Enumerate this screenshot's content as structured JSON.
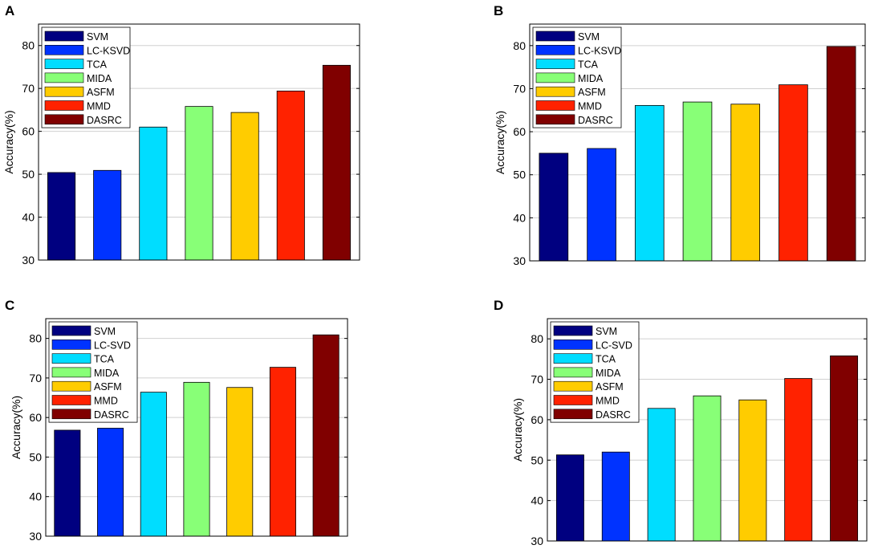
{
  "chart_data": [
    {
      "panel": "A",
      "type": "bar",
      "ylabel": "Accuracy(%)",
      "ylim": [
        30,
        85
      ],
      "yticks": [
        "30",
        "40",
        "50",
        "60",
        "70",
        "80"
      ],
      "grid": true,
      "legend_position": "top-left",
      "categories": [
        "SVM",
        "LC-KSVD",
        "TCA",
        "MIDA",
        "ASFM",
        "MMD",
        "DASRC"
      ],
      "values": [
        50.4,
        50.9,
        61.0,
        65.8,
        64.4,
        69.4,
        75.4
      ],
      "colors": [
        "#000080",
        "#0033ff",
        "#00ddff",
        "#88ff77",
        "#ffcc00",
        "#ff2200",
        "#800000"
      ]
    },
    {
      "panel": "B",
      "type": "bar",
      "ylabel": "Accuracy(%)",
      "ylim": [
        30,
        85
      ],
      "yticks": [
        "30",
        "40",
        "50",
        "60",
        "70",
        "80"
      ],
      "grid": true,
      "legend_position": "top-left",
      "categories": [
        "SVM",
        "LC-KSVD",
        "TCA",
        "MIDA",
        "ASFM",
        "MMD",
        "DASRC"
      ],
      "values": [
        55.0,
        56.1,
        66.1,
        66.9,
        66.4,
        70.9,
        79.8
      ],
      "colors": [
        "#000080",
        "#0033ff",
        "#00ddff",
        "#88ff77",
        "#ffcc00",
        "#ff2200",
        "#800000"
      ]
    },
    {
      "panel": "C",
      "type": "bar",
      "ylabel": "Accuracy(%)",
      "ylim": [
        30,
        85
      ],
      "yticks": [
        "30",
        "40",
        "50",
        "60",
        "70",
        "80"
      ],
      "grid": true,
      "legend_position": "top-left",
      "categories": [
        "SVM",
        "LC-SVD",
        "TCA",
        "MIDA",
        "ASFM",
        "MMD",
        "DASRC"
      ],
      "values": [
        56.8,
        57.3,
        66.4,
        68.9,
        67.6,
        72.7,
        80.9
      ],
      "colors": [
        "#000080",
        "#0033ff",
        "#00ddff",
        "#88ff77",
        "#ffcc00",
        "#ff2200",
        "#800000"
      ]
    },
    {
      "panel": "D",
      "type": "bar",
      "ylabel": "Accuracy(%)",
      "ylim": [
        30,
        85
      ],
      "yticks": [
        "30",
        "40",
        "50",
        "60",
        "70",
        "80"
      ],
      "grid": true,
      "legend_position": "top-left",
      "categories": [
        "SVM",
        "LC-SVD",
        "TCA",
        "MIDA",
        "ASFM",
        "MMD",
        "DASRC"
      ],
      "values": [
        51.3,
        52.0,
        62.8,
        65.9,
        64.9,
        70.2,
        75.8
      ],
      "colors": [
        "#000080",
        "#0033ff",
        "#00ddff",
        "#88ff77",
        "#ffcc00",
        "#ff2200",
        "#800000"
      ]
    }
  ]
}
